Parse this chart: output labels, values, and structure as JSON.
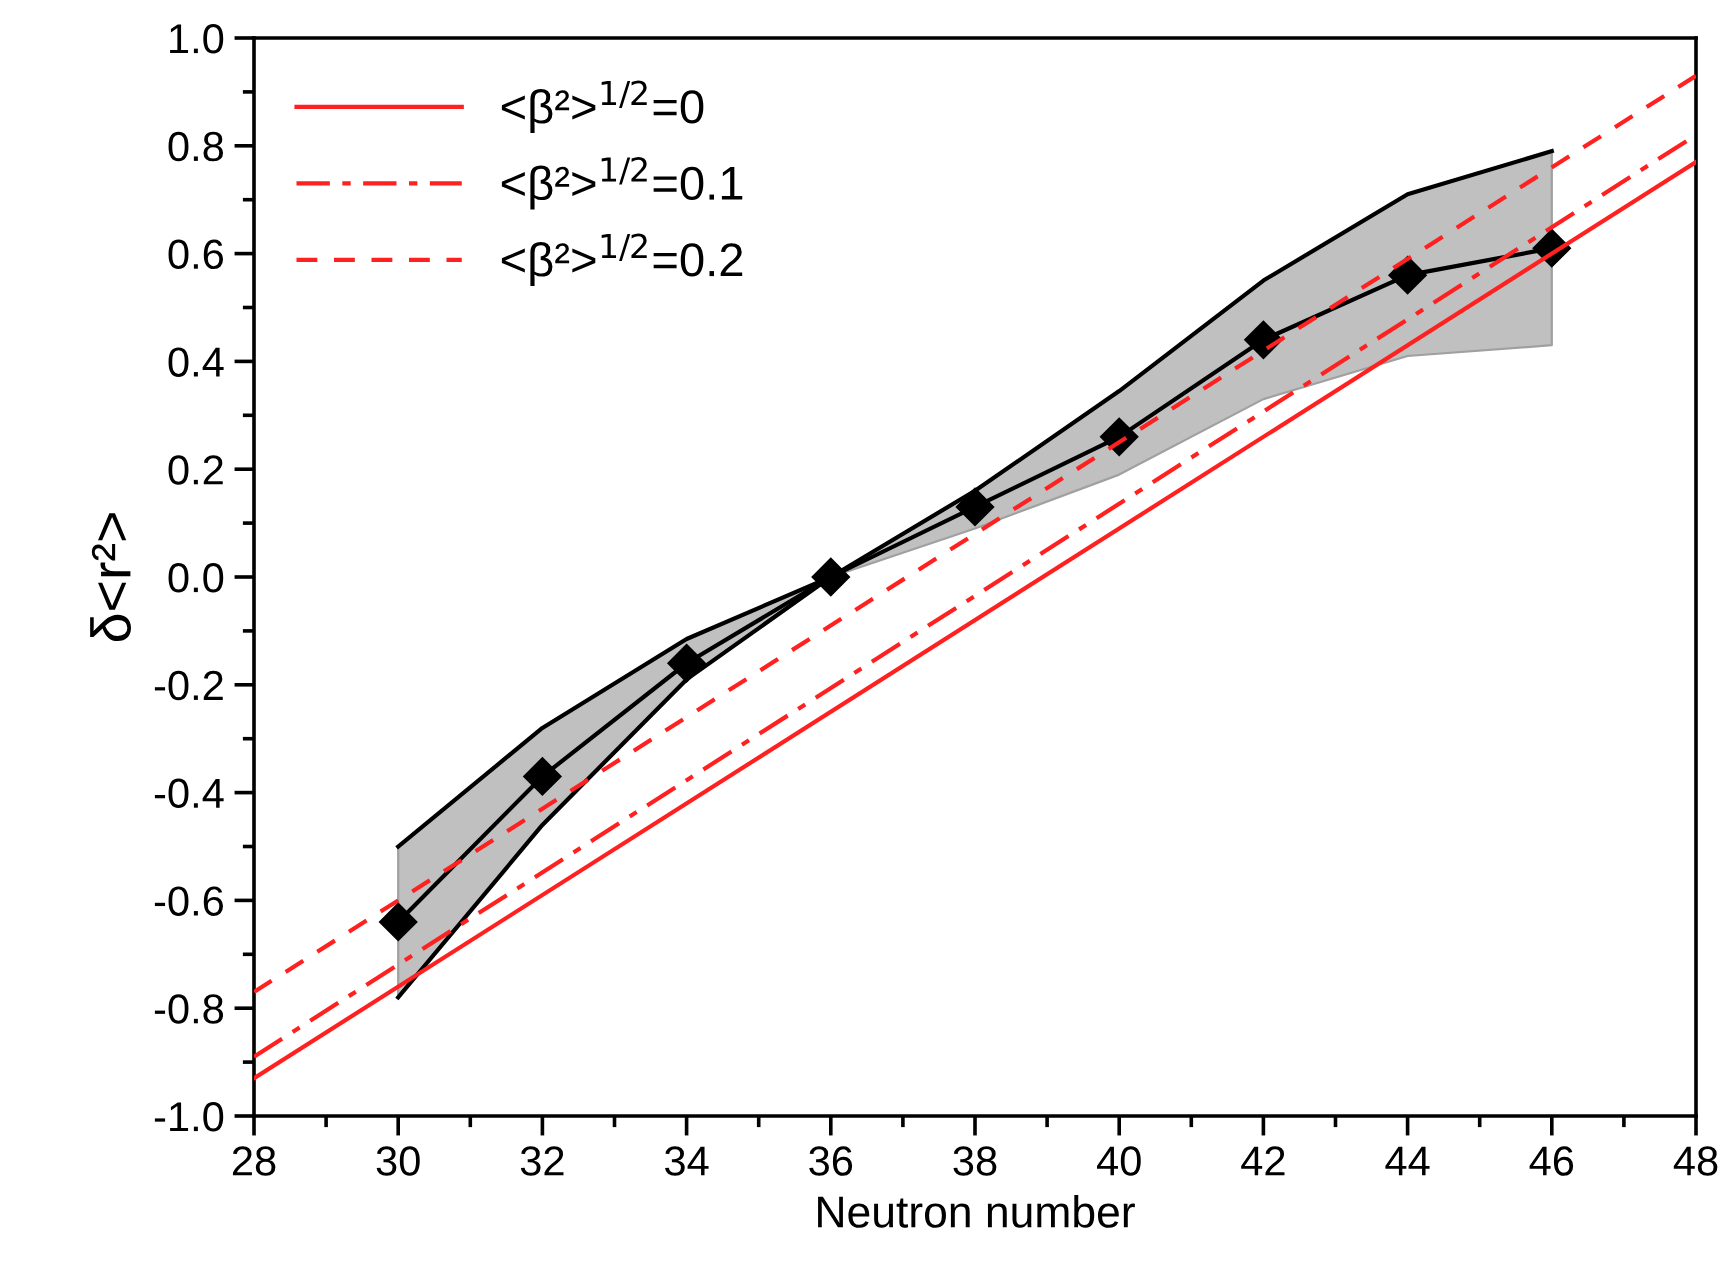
{
  "chart_data": {
    "type": "line",
    "xlabel": "Neutron number",
    "ylabel": "δ<r²>",
    "xlim": [
      28,
      48
    ],
    "xticks": [
      28,
      30,
      32,
      34,
      36,
      38,
      40,
      42,
      44,
      46,
      48
    ],
    "ylim": [
      -1.0,
      1.0
    ],
    "yticks": [
      {
        "value": -1.0,
        "label": "-1.0"
      },
      {
        "value": -0.8,
        "label": "-0.8"
      },
      {
        "value": -0.6,
        "label": "-0.6"
      },
      {
        "value": -0.4,
        "label": "-0.4"
      },
      {
        "value": -0.2,
        "label": "-0.2"
      },
      {
        "value": 0.0,
        "label": "0.0"
      },
      {
        "value": 0.2,
        "label": "0.2"
      },
      {
        "value": 0.4,
        "label": "0.4"
      },
      {
        "value": 0.6,
        "label": "0.6"
      },
      {
        "value": 0.8,
        "label": "0.8"
      },
      {
        "value": 1.0,
        "label": "1.0"
      }
    ],
    "grid": false,
    "legend": "top left",
    "series": [
      {
        "color": "#000000",
        "marker": "diamond",
        "x": [
          30,
          32,
          34,
          36,
          38,
          40,
          42,
          44,
          46
        ],
        "values": [
          -0.64,
          -0.37,
          -0.16,
          0.0,
          0.13,
          0.26,
          0.44,
          0.56,
          0.61
        ],
        "lower": [
          -0.78,
          -0.46,
          -0.19,
          0.0,
          0.09,
          0.19,
          0.33,
          0.41,
          0.43
        ],
        "upper": [
          -0.5,
          -0.28,
          -0.115,
          0.0,
          0.16,
          0.345,
          0.55,
          0.71,
          0.79
        ]
      },
      {
        "color": "#000000",
        "marker": "none",
        "x": [
          30,
          32,
          34,
          36,
          38,
          40,
          42,
          44,
          46
        ],
        "values": [
          -0.5,
          -0.28,
          -0.115,
          0.0,
          0.16,
          0.345,
          0.55,
          0.71,
          0.79
        ]
      },
      {
        "color": "#000000",
        "marker": "none",
        "x": [
          30,
          32,
          34,
          36
        ],
        "values": [
          -0.78,
          -0.46,
          -0.19,
          0.0
        ]
      },
      {
        "name": "<β²>$^{1/2}$=0",
        "color": "#ff2020",
        "marker": "none",
        "line_style": "solid",
        "x": [
          28,
          48
        ],
        "values": [
          -0.93,
          0.77
        ]
      },
      {
        "name": "<β²>$^{1/2}$=0.1",
        "color": "#ff2020",
        "marker": "none",
        "line_style": "dashdot",
        "x": [
          28,
          48
        ],
        "values": [
          -0.89,
          0.82
        ]
      },
      {
        "name": "<β²>$^{1/2}$=0.2",
        "color": "#ff2020",
        "marker": "none",
        "line_style": "dashed",
        "x": [
          28,
          48
        ],
        "values": [
          -0.77,
          0.93
        ]
      }
    ]
  }
}
